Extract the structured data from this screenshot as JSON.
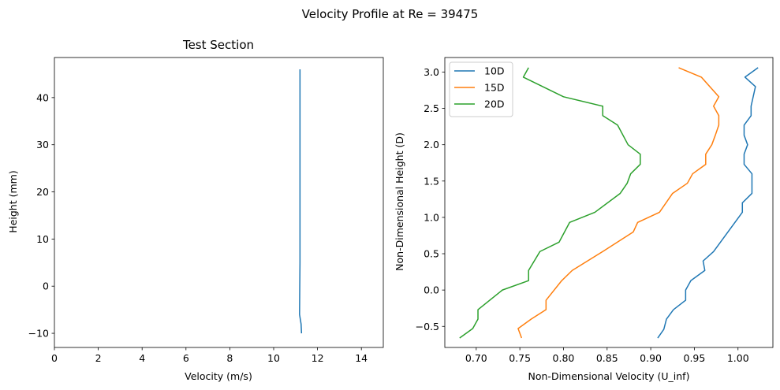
{
  "figure": {
    "suptitle": "Velocity Profile at Re = 39475"
  },
  "chart_data": [
    {
      "type": "line",
      "title": "Test Section",
      "xlabel": "Velocity (m/s)",
      "ylabel": "Height (mm)",
      "xlim": [
        0,
        15
      ],
      "ylim": [
        -13,
        48.5
      ],
      "xticks": [
        0,
        2,
        4,
        6,
        8,
        10,
        12,
        14
      ],
      "yticks": [
        -10,
        0,
        10,
        20,
        30,
        40
      ],
      "grid": false,
      "legend": null,
      "series": [
        {
          "color": "#1f77b4",
          "x": [
            11.27,
            11.25,
            11.18,
            11.19,
            11.2,
            11.2,
            11.2,
            11.2,
            11.2,
            11.2,
            11.2
          ],
          "y": [
            -10,
            -8,
            -6,
            0,
            5,
            10,
            15,
            20,
            30,
            40,
            46
          ]
        }
      ]
    },
    {
      "type": "line",
      "title": "",
      "xlabel": "Non-Dimensional Velocity (U_inf)",
      "ylabel": "Non-Dimensional Height (D)",
      "xlim": [
        0.664,
        1.04
      ],
      "ylim": [
        -0.79,
        3.2
      ],
      "xticks": [
        0.7,
        0.75,
        0.8,
        0.85,
        0.9,
        0.95,
        1.0
      ],
      "xtick_labels": [
        "0.70",
        "0.75",
        "0.80",
        "0.85",
        "0.90",
        "0.95",
        "1.00"
      ],
      "yticks": [
        -0.5,
        0.0,
        0.5,
        1.0,
        1.5,
        2.0,
        2.5,
        3.0
      ],
      "ytick_labels": [
        "-0.5",
        "0.0",
        "0.5",
        "1.0",
        "1.5",
        "2.0",
        "2.5",
        "3.0"
      ],
      "grid": false,
      "legend": "top-left",
      "series": [
        {
          "name": "10D",
          "color": "#1f77b4",
          "x": [
            0.908,
            0.915,
            0.918,
            0.926,
            0.94,
            0.94,
            0.946,
            0.962,
            0.96,
            0.972,
            1.005,
            1.005,
            1.016,
            1.016,
            1.016,
            1.007,
            1.007,
            1.011,
            1.007,
            1.007,
            1.015,
            1.015,
            1.02,
            1.008,
            1.023
          ],
          "y": [
            -0.66,
            -0.54,
            -0.4,
            -0.27,
            -0.14,
            0.0,
            0.13,
            0.27,
            0.4,
            0.53,
            1.07,
            1.2,
            1.33,
            1.47,
            1.6,
            1.73,
            1.87,
            2.0,
            2.13,
            2.27,
            2.4,
            2.53,
            2.8,
            2.93,
            3.06
          ]
        },
        {
          "name": "15D",
          "color": "#ff7f0e",
          "x": [
            0.752,
            0.748,
            0.763,
            0.78,
            0.78,
            0.798,
            0.81,
            0.845,
            0.88,
            0.885,
            0.91,
            0.925,
            0.942,
            0.948,
            0.963,
            0.963,
            0.97,
            0.974,
            0.978,
            0.978,
            0.972,
            0.978,
            0.958,
            0.932
          ],
          "y": [
            -0.66,
            -0.53,
            -0.4,
            -0.27,
            -0.14,
            0.13,
            0.27,
            0.53,
            0.8,
            0.93,
            1.07,
            1.33,
            1.47,
            1.6,
            1.73,
            1.87,
            2.0,
            2.13,
            2.27,
            2.4,
            2.53,
            2.66,
            2.93,
            3.06
          ]
        },
        {
          "name": "20D",
          "color": "#2ca02c",
          "x": [
            0.681,
            0.696,
            0.702,
            0.702,
            0.73,
            0.76,
            0.76,
            0.773,
            0.795,
            0.807,
            0.836,
            0.865,
            0.873,
            0.877,
            0.888,
            0.888,
            0.874,
            0.862,
            0.845,
            0.845,
            0.8,
            0.754,
            0.76
          ],
          "y": [
            -0.66,
            -0.53,
            -0.4,
            -0.27,
            0.0,
            0.13,
            0.27,
            0.53,
            0.66,
            0.93,
            1.07,
            1.33,
            1.47,
            1.6,
            1.73,
            1.87,
            2.0,
            2.27,
            2.4,
            2.53,
            2.66,
            2.93,
            3.06
          ]
        }
      ]
    }
  ]
}
